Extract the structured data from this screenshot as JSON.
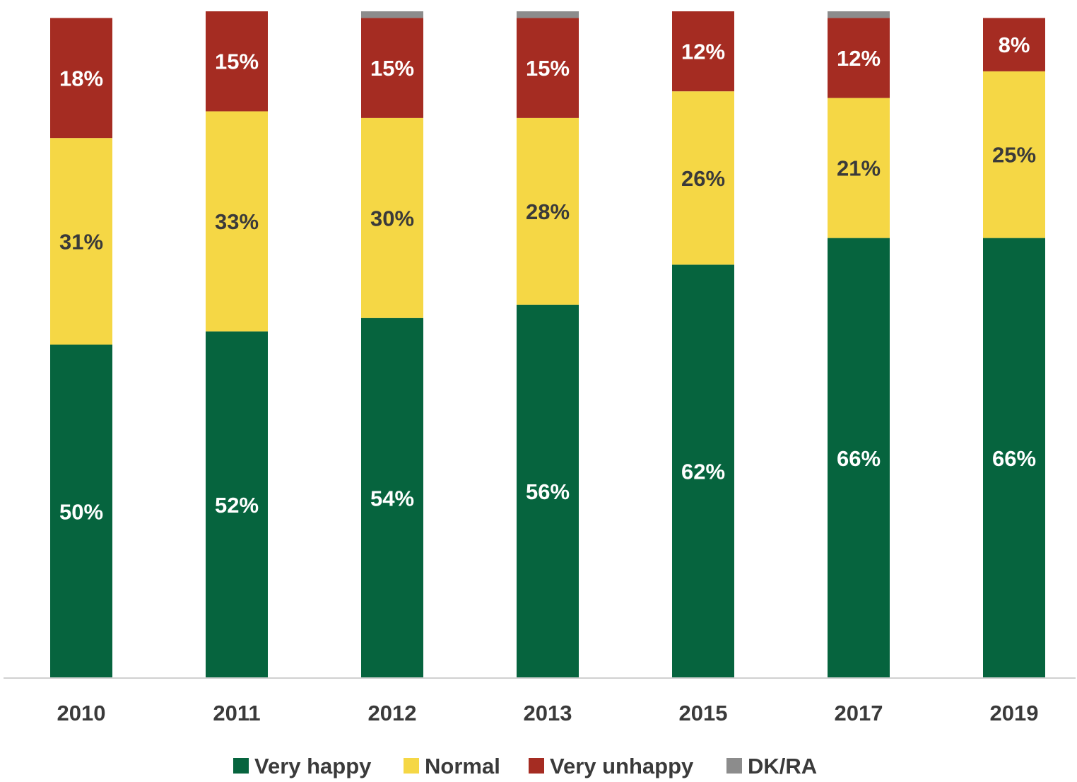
{
  "chart_data": {
    "type": "bar",
    "stacked": true,
    "categories": [
      "2010",
      "2011",
      "2012",
      "2013",
      "2015",
      "2017",
      "2019"
    ],
    "series": [
      {
        "name": "Very happy",
        "color": "#06643E",
        "label_color": "#FFFFFF",
        "values": [
          50,
          52,
          54,
          56,
          62,
          66,
          66
        ],
        "labels": [
          "50%",
          "52%",
          "54%",
          "56%",
          "62%",
          "66%",
          "66%"
        ]
      },
      {
        "name": "Normal",
        "color": "#F5D745",
        "label_color": "#3A3A3A",
        "values": [
          31,
          33,
          30,
          28,
          26,
          21,
          25
        ],
        "labels": [
          "31%",
          "33%",
          "30%",
          "28%",
          "26%",
          "21%",
          "25%"
        ]
      },
      {
        "name": "Very unhappy",
        "color": "#A52C22",
        "label_color": "#FFFFFF",
        "values": [
          18,
          15,
          15,
          15,
          12,
          12,
          8
        ],
        "labels": [
          "18%",
          "15%",
          "15%",
          "15%",
          "12%",
          "12%",
          "8%"
        ]
      },
      {
        "name": "DK/RA",
        "color": "#8C8C8C",
        "label_color": "#FFFFFF",
        "values": [
          0,
          0,
          1,
          1,
          0,
          1,
          0
        ],
        "labels": [
          "",
          "",
          "",
          "",
          "",
          "",
          ""
        ]
      }
    ],
    "title": "",
    "xlabel": "",
    "ylabel": "",
    "ylim": [
      0,
      100
    ],
    "grid": false,
    "legend_position": "bottom",
    "data_labels": true
  }
}
